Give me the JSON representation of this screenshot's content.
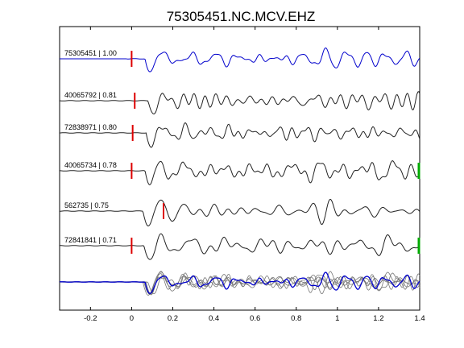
{
  "chart_data": {
    "type": "line",
    "title": "75305451.NC.MCV.EHZ",
    "xlabel": "",
    "ylabel": "",
    "xlim": [
      -0.35,
      1.4
    ],
    "x_ticks": [
      -0.2,
      0,
      0.2,
      0.4,
      0.6,
      0.8,
      1,
      1.2,
      1.4
    ],
    "x_tick_labels": [
      "-0.2",
      "0",
      "0.2",
      "0.4",
      "0.6",
      "0.8",
      "1",
      "1.2",
      "1.4"
    ],
    "grid": false,
    "colors": {
      "master": "#0000cc",
      "trace": "#222222",
      "overlay": "#777777",
      "pick": "#dd0000",
      "end_mark": "#00aa00"
    },
    "traces": [
      {
        "label": "75305451 | 1.00",
        "pick_time": 0.0,
        "end_mark": false,
        "color": "master",
        "onset": 0.065
      },
      {
        "label": "40065792 | 0.81",
        "pick_time": 0.015,
        "end_mark": false,
        "color": "trace",
        "onset": 0.08
      },
      {
        "label": "72838971 | 0.80",
        "pick_time": 0.005,
        "end_mark": false,
        "color": "trace",
        "onset": 0.07
      },
      {
        "label": "40065734 | 0.78",
        "pick_time": 0.0,
        "end_mark": true,
        "color": "trace",
        "onset": 0.065
      },
      {
        "label": "562735 | 0.75",
        "pick_time": 0.155,
        "end_mark": false,
        "color": "trace",
        "onset": 0.055
      },
      {
        "label": "72841841 | 0.71",
        "pick_time": 0.0,
        "end_mark": true,
        "color": "trace",
        "onset": 0.06
      }
    ]
  }
}
